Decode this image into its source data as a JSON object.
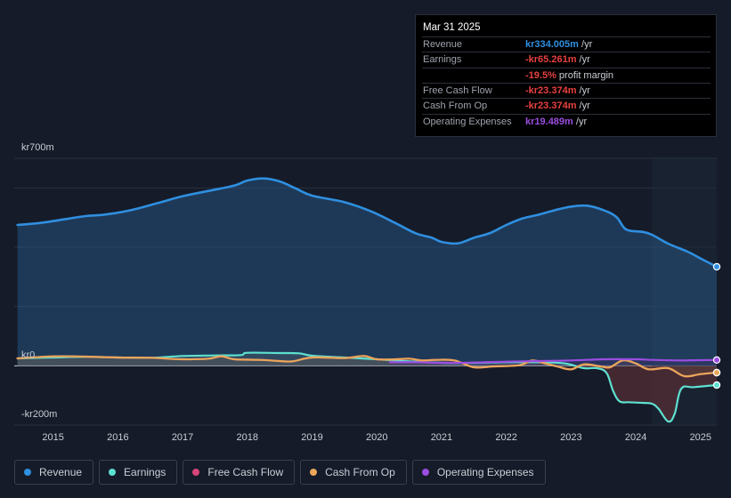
{
  "chart_data": {
    "type": "area",
    "title": "",
    "y_unit_labels": [
      "kr700m",
      "kr0",
      "-kr200m"
    ],
    "ylim": [
      -200,
      700
    ],
    "xlim": [
      2014.4,
      2025.25
    ],
    "x_ticks": [
      "2015",
      "2016",
      "2017",
      "2018",
      "2019",
      "2020",
      "2021",
      "2022",
      "2023",
      "2024",
      "2025"
    ],
    "forecast_start": 2024.25,
    "series": [
      {
        "name": "Revenue",
        "color": "#2f8fe0",
        "points": [
          [
            2014.45,
            475
          ],
          [
            2014.8,
            482
          ],
          [
            2015.2,
            495
          ],
          [
            2015.5,
            505
          ],
          [
            2015.8,
            510
          ],
          [
            2016.2,
            525
          ],
          [
            2016.6,
            548
          ],
          [
            2017.0,
            572
          ],
          [
            2017.4,
            590
          ],
          [
            2017.8,
            608
          ],
          [
            2018.0,
            625
          ],
          [
            2018.25,
            632
          ],
          [
            2018.5,
            622
          ],
          [
            2018.75,
            598
          ],
          [
            2019.0,
            574
          ],
          [
            2019.5,
            552
          ],
          [
            2019.9,
            522
          ],
          [
            2020.3,
            480
          ],
          [
            2020.6,
            447
          ],
          [
            2020.85,
            432
          ],
          [
            2021.0,
            418
          ],
          [
            2021.25,
            413
          ],
          [
            2021.5,
            432
          ],
          [
            2021.75,
            448
          ],
          [
            2022.0,
            475
          ],
          [
            2022.25,
            497
          ],
          [
            2022.5,
            510
          ],
          [
            2022.75,
            525
          ],
          [
            2023.0,
            537
          ],
          [
            2023.25,
            540
          ],
          [
            2023.5,
            525
          ],
          [
            2023.7,
            502
          ],
          [
            2023.85,
            460
          ],
          [
            2024.1,
            452
          ],
          [
            2024.25,
            442
          ],
          [
            2024.5,
            412
          ],
          [
            2024.8,
            385
          ],
          [
            2025.0,
            362
          ],
          [
            2025.25,
            334
          ]
        ]
      },
      {
        "name": "Earnings",
        "color": "#5ee0cf",
        "points": [
          [
            2014.45,
            25
          ],
          [
            2015.0,
            28
          ],
          [
            2015.5,
            30
          ],
          [
            2016.0,
            28
          ],
          [
            2016.5,
            27
          ],
          [
            2017.0,
            33
          ],
          [
            2017.5,
            35
          ],
          [
            2017.9,
            36
          ],
          [
            2018.0,
            44
          ],
          [
            2018.5,
            43
          ],
          [
            2018.8,
            42
          ],
          [
            2019.0,
            34
          ],
          [
            2019.5,
            28
          ],
          [
            2020.0,
            22
          ],
          [
            2020.5,
            15
          ],
          [
            2021.0,
            10
          ],
          [
            2021.5,
            10
          ],
          [
            2022.0,
            12
          ],
          [
            2022.5,
            12
          ],
          [
            2022.9,
            8
          ],
          [
            2023.2,
            -8
          ],
          [
            2023.4,
            -8
          ],
          [
            2023.55,
            -25
          ],
          [
            2023.65,
            -85
          ],
          [
            2023.75,
            -120
          ],
          [
            2023.9,
            -123
          ],
          [
            2024.1,
            -125
          ],
          [
            2024.25,
            -128
          ],
          [
            2024.35,
            -145
          ],
          [
            2024.5,
            -188
          ],
          [
            2024.6,
            -162
          ],
          [
            2024.7,
            -78
          ],
          [
            2024.9,
            -72
          ],
          [
            2025.25,
            -65
          ]
        ]
      },
      {
        "name": "Free Cash Flow",
        "color": "#d6457a",
        "points": [
          [
            2014.45,
            25
          ],
          [
            2015.0,
            32
          ],
          [
            2015.5,
            31
          ],
          [
            2016.0,
            28
          ],
          [
            2016.5,
            27
          ],
          [
            2017.0,
            22
          ],
          [
            2017.4,
            24
          ],
          [
            2017.6,
            32
          ],
          [
            2017.8,
            22
          ],
          [
            2018.2,
            20
          ],
          [
            2018.5,
            16
          ],
          [
            2018.7,
            15
          ],
          [
            2019.0,
            28
          ],
          [
            2019.5,
            26
          ],
          [
            2019.8,
            33
          ],
          [
            2020.0,
            22
          ],
          [
            2020.3,
            22
          ],
          [
            2020.5,
            24
          ],
          [
            2020.7,
            18
          ],
          [
            2020.9,
            20
          ],
          [
            2021.2,
            18
          ],
          [
            2021.5,
            -5
          ],
          [
            2021.8,
            -2
          ],
          [
            2022.2,
            2
          ],
          [
            2022.4,
            18
          ],
          [
            2022.6,
            8
          ],
          [
            2022.8,
            -3
          ],
          [
            2023.0,
            -12
          ],
          [
            2023.2,
            5
          ],
          [
            2023.45,
            -2
          ],
          [
            2023.6,
            -5
          ],
          [
            2023.8,
            18
          ],
          [
            2024.0,
            8
          ],
          [
            2024.2,
            -12
          ],
          [
            2024.5,
            -8
          ],
          [
            2024.75,
            -35
          ],
          [
            2025.0,
            -28
          ],
          [
            2025.25,
            -23
          ]
        ]
      },
      {
        "name": "Cash From Op",
        "color": "#e8a75a",
        "points": [
          [
            2014.45,
            25
          ],
          [
            2015.0,
            32
          ],
          [
            2015.5,
            31
          ],
          [
            2016.0,
            28
          ],
          [
            2016.5,
            27
          ],
          [
            2017.0,
            22
          ],
          [
            2017.4,
            24
          ],
          [
            2017.6,
            32
          ],
          [
            2017.8,
            22
          ],
          [
            2018.2,
            20
          ],
          [
            2018.5,
            16
          ],
          [
            2018.7,
            15
          ],
          [
            2019.0,
            28
          ],
          [
            2019.5,
            26
          ],
          [
            2019.8,
            33
          ],
          [
            2020.0,
            22
          ],
          [
            2020.3,
            22
          ],
          [
            2020.5,
            24
          ],
          [
            2020.7,
            18
          ],
          [
            2020.9,
            20
          ],
          [
            2021.2,
            18
          ],
          [
            2021.5,
            -5
          ],
          [
            2021.8,
            -2
          ],
          [
            2022.2,
            2
          ],
          [
            2022.4,
            18
          ],
          [
            2022.6,
            8
          ],
          [
            2022.8,
            -3
          ],
          [
            2023.0,
            -12
          ],
          [
            2023.2,
            5
          ],
          [
            2023.45,
            -2
          ],
          [
            2023.6,
            -5
          ],
          [
            2023.8,
            18
          ],
          [
            2024.0,
            8
          ],
          [
            2024.2,
            -12
          ],
          [
            2024.5,
            -8
          ],
          [
            2024.75,
            -35
          ],
          [
            2025.0,
            -28
          ],
          [
            2025.25,
            -23
          ]
        ]
      },
      {
        "name": "Operating Expenses",
        "color": "#9b4de0",
        "points": [
          [
            2020.2,
            12
          ],
          [
            2020.6,
            12
          ],
          [
            2021.0,
            10
          ],
          [
            2021.5,
            11
          ],
          [
            2022.0,
            14
          ],
          [
            2022.5,
            16
          ],
          [
            2023.0,
            18
          ],
          [
            2023.5,
            22
          ],
          [
            2024.0,
            22
          ],
          [
            2024.25,
            20
          ],
          [
            2024.7,
            18
          ],
          [
            2025.0,
            19
          ],
          [
            2025.25,
            19.5
          ]
        ]
      }
    ]
  },
  "tooltip": {
    "date": "Mar 31 2025",
    "rows": [
      {
        "label": "Revenue",
        "value": "kr334.005m",
        "unit": " /yr",
        "color": "#2f8fe0"
      },
      {
        "label": "Earnings",
        "value": "-kr65.261m",
        "unit": " /yr",
        "color": "#e84040"
      },
      {
        "label": "",
        "value": "-19.5%",
        "unit": " profit margin",
        "color": "#e84040"
      },
      {
        "label": "Free Cash Flow",
        "value": "-kr23.374m",
        "unit": " /yr",
        "color": "#e84040"
      },
      {
        "label": "Cash From Op",
        "value": "-kr23.374m",
        "unit": " /yr",
        "color": "#e84040"
      },
      {
        "label": "Operating Expenses",
        "value": "kr19.489m",
        "unit": " /yr",
        "color": "#9b4de0"
      }
    ]
  },
  "legend": [
    {
      "label": "Revenue",
      "color": "#2f8fe0"
    },
    {
      "label": "Earnings",
      "color": "#5ee0cf"
    },
    {
      "label": "Free Cash Flow",
      "color": "#d6457a"
    },
    {
      "label": "Cash From Op",
      "color": "#e8a75a"
    },
    {
      "label": "Operating Expenses",
      "color": "#9b4de0"
    }
  ]
}
